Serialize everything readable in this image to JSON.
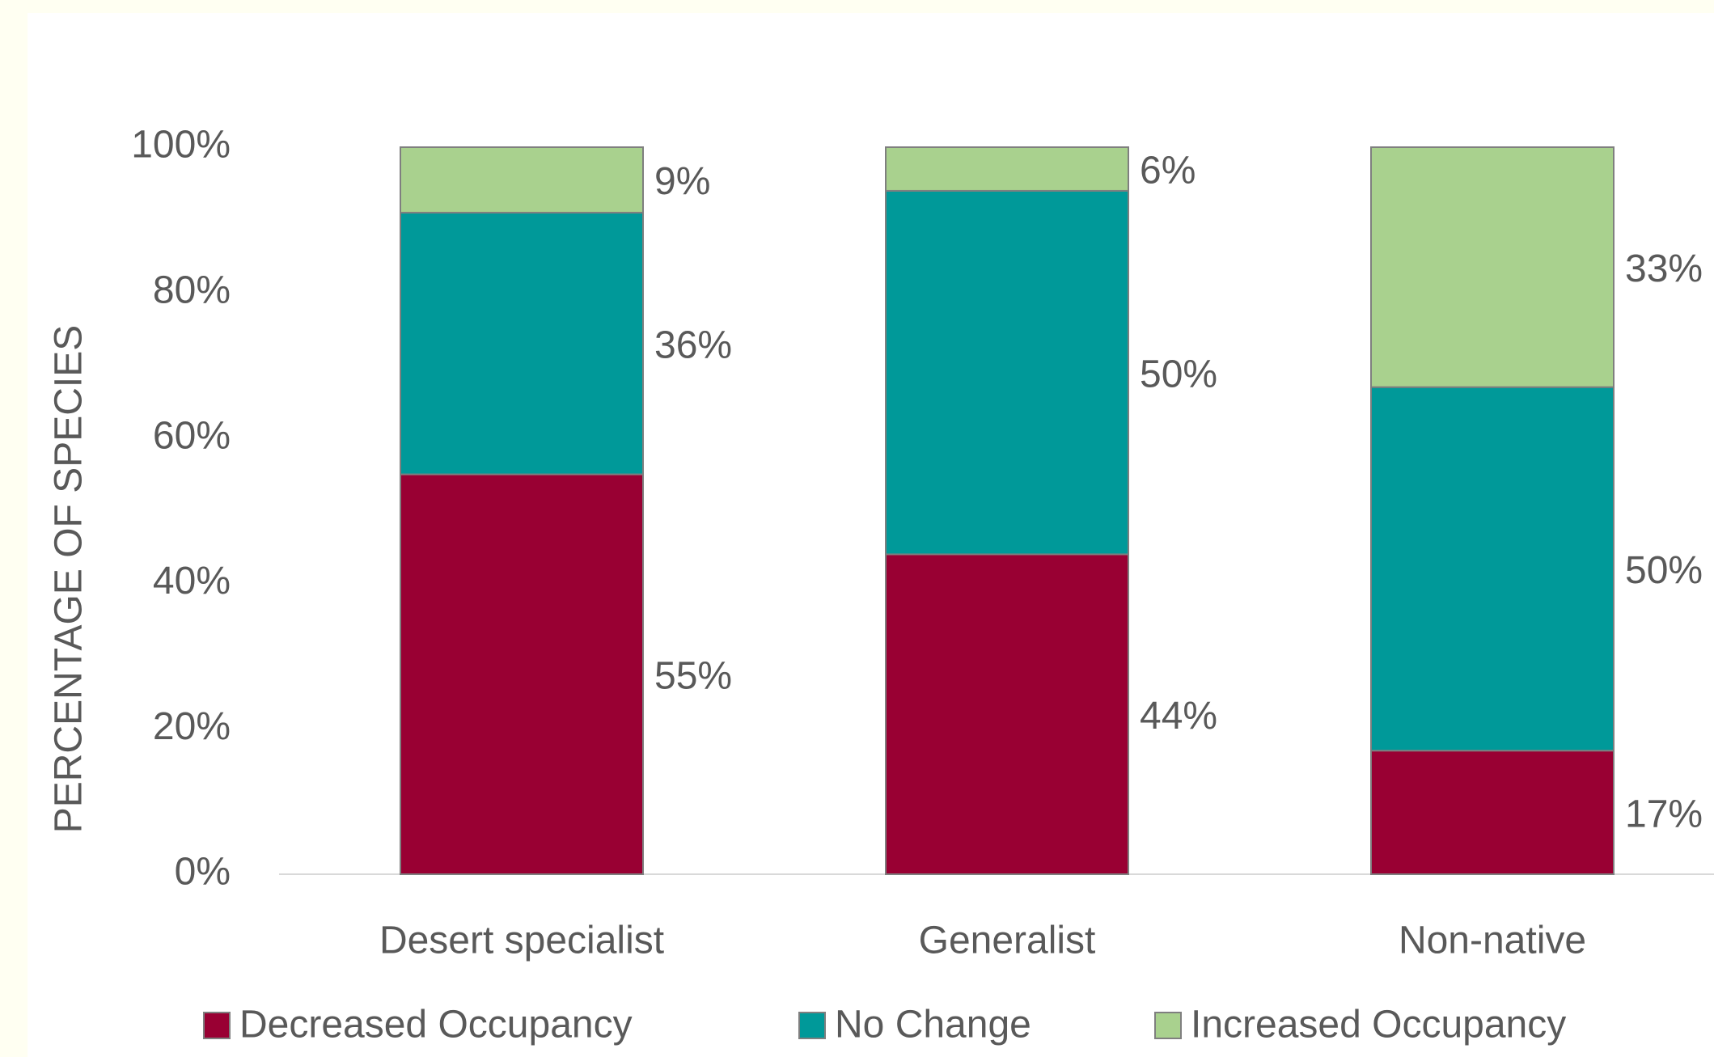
{
  "chart_data": {
    "type": "stacked_bar",
    "y_axis_label": "PERCENTAGE OF SPECIES",
    "categories": [
      "Desert specialist",
      "Generalist",
      "Non-native"
    ],
    "series": [
      {
        "name": "Decreased Occupancy",
        "color": "#990033",
        "values": [
          55,
          44,
          17
        ],
        "value_labels": [
          "55%",
          "44%",
          "17%"
        ]
      },
      {
        "name": "No Change",
        "color": "#009999",
        "values": [
          36,
          50,
          50
        ],
        "value_labels": [
          "36%",
          "50%",
          "50%"
        ]
      },
      {
        "name": "Increased Occupancy",
        "color": "#a9d18e",
        "values": [
          9,
          6,
          33
        ],
        "value_labels": [
          "9%",
          "6%",
          "33%"
        ]
      }
    ],
    "ylim": [
      0,
      100
    ],
    "yticks": [
      {
        "value": 0,
        "label": "0%"
      },
      {
        "value": 20,
        "label": "20%"
      },
      {
        "value": 40,
        "label": "40%"
      },
      {
        "value": 60,
        "label": "60%"
      },
      {
        "value": 80,
        "label": "80%"
      },
      {
        "value": 100,
        "label": "100%"
      }
    ],
    "legend": "bottom"
  }
}
